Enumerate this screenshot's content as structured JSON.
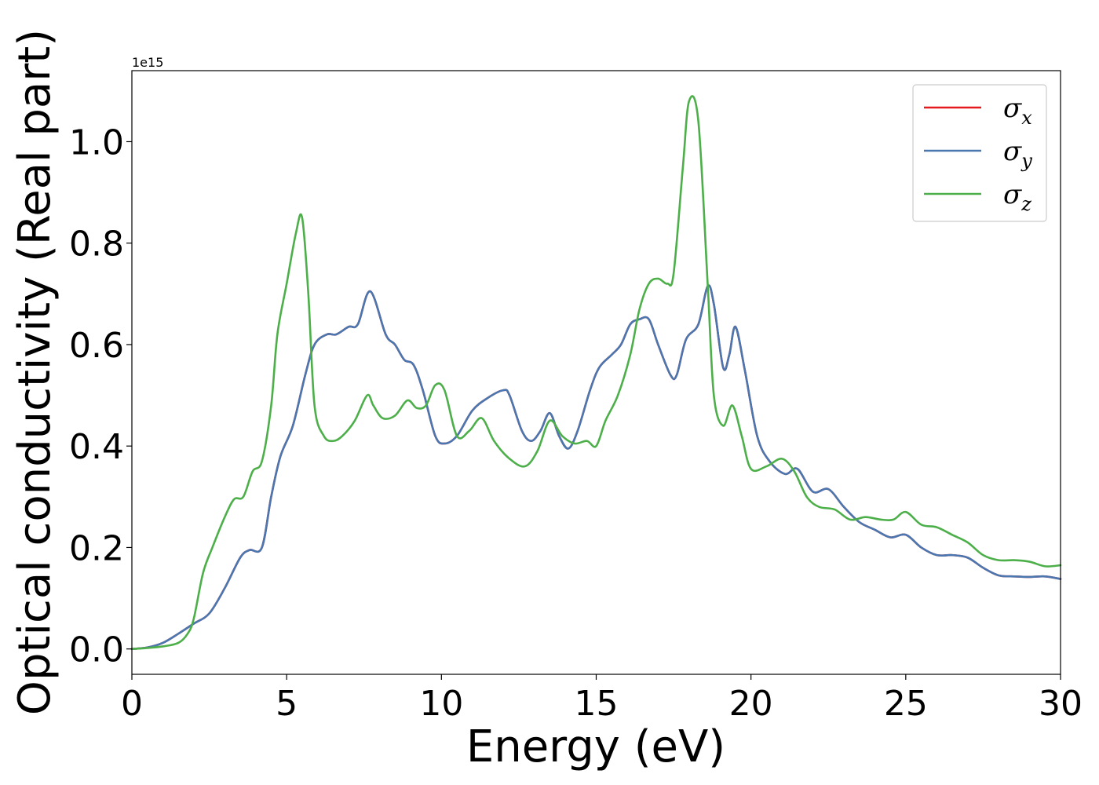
{
  "chart_data": {
    "type": "line",
    "title": "",
    "xlabel": "Energy (eV)",
    "ylabel": "Optical conductivity (Real part)",
    "y_offset_label": "1e15",
    "xlim": [
      0,
      30
    ],
    "ylim": [
      -0.05,
      1.14
    ],
    "xticks": [
      0,
      5,
      10,
      15,
      20,
      25,
      30
    ],
    "xtick_labels": [
      "0",
      "5",
      "10",
      "15",
      "20",
      "25",
      "30"
    ],
    "yticks": [
      0.0,
      0.2,
      0.4,
      0.6,
      0.8,
      1.0
    ],
    "ytick_labels": [
      "0.0",
      "0.2",
      "0.4",
      "0.6",
      "0.8",
      "1.0"
    ],
    "grid": false,
    "legend_position": "top-right",
    "series": [
      {
        "name": "σx",
        "symbol": "σ",
        "subscript": "x",
        "color": "#e41a1c",
        "x": [
          0,
          0.5,
          1,
          1.5,
          2,
          2.5,
          3,
          3.5,
          3.8,
          4.2,
          4.5,
          4.8,
          5.2,
          5.6,
          5.9,
          6.3,
          6.6,
          7,
          7.3,
          7.7,
          8.2,
          8.5,
          8.8,
          9.1,
          9.4,
          9.8,
          10.1,
          10.5,
          11,
          11.5,
          12,
          12.2,
          12.6,
          12.9,
          13.2,
          13.5,
          13.8,
          14.1,
          14.4,
          14.8,
          15.1,
          15.5,
          15.8,
          16.1,
          16.4,
          16.7,
          17,
          17.4,
          17.6,
          17.9,
          18.3,
          18.6,
          18.8,
          19.1,
          19.3,
          19.5,
          19.8,
          20.2,
          20.6,
          21.1,
          21.5,
          22,
          22.5,
          23,
          23.5,
          24,
          24.5,
          25,
          25.5,
          26,
          26.5,
          27,
          27.5,
          28,
          28.5,
          29,
          29.5,
          30
        ],
        "values": [
          0,
          0.003,
          0.012,
          0.03,
          0.05,
          0.07,
          0.12,
          0.18,
          0.195,
          0.2,
          0.3,
          0.38,
          0.44,
          0.54,
          0.6,
          0.62,
          0.62,
          0.635,
          0.64,
          0.705,
          0.62,
          0.6,
          0.57,
          0.56,
          0.51,
          0.42,
          0.405,
          0.42,
          0.47,
          0.495,
          0.51,
          0.5,
          0.43,
          0.41,
          0.43,
          0.465,
          0.42,
          0.395,
          0.43,
          0.51,
          0.555,
          0.58,
          0.6,
          0.64,
          0.65,
          0.65,
          0.6,
          0.54,
          0.54,
          0.61,
          0.64,
          0.715,
          0.68,
          0.555,
          0.58,
          0.635,
          0.55,
          0.42,
          0.37,
          0.345,
          0.355,
          0.31,
          0.315,
          0.28,
          0.25,
          0.235,
          0.22,
          0.225,
          0.2,
          0.185,
          0.185,
          0.18,
          0.16,
          0.145,
          0.143,
          0.142,
          0.143,
          0.138
        ]
      },
      {
        "name": "σy",
        "symbol": "σ",
        "subscript": "y",
        "color": "#4a77b0",
        "x": [
          0,
          0.5,
          1,
          1.5,
          2,
          2.5,
          3,
          3.5,
          3.8,
          4.2,
          4.5,
          4.8,
          5.2,
          5.6,
          5.9,
          6.3,
          6.6,
          7,
          7.3,
          7.7,
          8.2,
          8.5,
          8.8,
          9.1,
          9.4,
          9.8,
          10.1,
          10.5,
          11,
          11.5,
          12,
          12.2,
          12.6,
          12.9,
          13.2,
          13.5,
          13.8,
          14.1,
          14.4,
          14.8,
          15.1,
          15.5,
          15.8,
          16.1,
          16.4,
          16.7,
          17,
          17.4,
          17.6,
          17.9,
          18.3,
          18.6,
          18.8,
          19.1,
          19.3,
          19.5,
          19.8,
          20.2,
          20.6,
          21.1,
          21.5,
          22,
          22.5,
          23,
          23.5,
          24,
          24.5,
          25,
          25.5,
          26,
          26.5,
          27,
          27.5,
          28,
          28.5,
          29,
          29.5,
          30
        ],
        "values": [
          0,
          0.003,
          0.012,
          0.03,
          0.05,
          0.07,
          0.12,
          0.18,
          0.195,
          0.2,
          0.3,
          0.38,
          0.44,
          0.54,
          0.6,
          0.62,
          0.62,
          0.635,
          0.64,
          0.705,
          0.62,
          0.6,
          0.57,
          0.56,
          0.51,
          0.42,
          0.405,
          0.42,
          0.47,
          0.495,
          0.51,
          0.5,
          0.43,
          0.41,
          0.43,
          0.465,
          0.42,
          0.395,
          0.43,
          0.51,
          0.555,
          0.58,
          0.6,
          0.64,
          0.65,
          0.65,
          0.6,
          0.54,
          0.54,
          0.61,
          0.64,
          0.715,
          0.68,
          0.555,
          0.58,
          0.635,
          0.55,
          0.42,
          0.37,
          0.345,
          0.355,
          0.31,
          0.315,
          0.28,
          0.25,
          0.235,
          0.22,
          0.225,
          0.2,
          0.185,
          0.185,
          0.18,
          0.16,
          0.145,
          0.143,
          0.142,
          0.143,
          0.138
        ]
      },
      {
        "name": "σz",
        "symbol": "σ",
        "subscript": "z",
        "color": "#4daf4a",
        "x": [
          0,
          0.5,
          1,
          1.5,
          1.8,
          2,
          2.3,
          2.6,
          3,
          3.3,
          3.6,
          3.9,
          4.2,
          4.5,
          4.7,
          5,
          5.3,
          5.5,
          5.7,
          5.9,
          6.2,
          6.5,
          6.8,
          7.2,
          7.6,
          7.8,
          8.1,
          8.5,
          8.9,
          9.2,
          9.5,
          9.8,
          10.1,
          10.5,
          10.9,
          11.3,
          11.7,
          12.2,
          12.7,
          13.1,
          13.5,
          13.9,
          14.3,
          14.7,
          15,
          15.3,
          15.7,
          16.1,
          16.4,
          16.7,
          17,
          17.3,
          17.5,
          17.8,
          18,
          18.3,
          18.6,
          18.8,
          19.1,
          19.4,
          19.7,
          20,
          20.5,
          21,
          21.4,
          21.8,
          22.2,
          22.7,
          23.2,
          23.7,
          24.2,
          24.6,
          25,
          25.5,
          26,
          26.5,
          27,
          27.5,
          28,
          28.5,
          29,
          29.5,
          30
        ],
        "values": [
          0,
          0.002,
          0.005,
          0.012,
          0.03,
          0.06,
          0.15,
          0.2,
          0.26,
          0.295,
          0.3,
          0.35,
          0.37,
          0.48,
          0.62,
          0.72,
          0.82,
          0.85,
          0.7,
          0.48,
          0.42,
          0.41,
          0.42,
          0.45,
          0.5,
          0.48,
          0.455,
          0.46,
          0.49,
          0.475,
          0.48,
          0.52,
          0.51,
          0.42,
          0.43,
          0.455,
          0.41,
          0.375,
          0.36,
          0.39,
          0.45,
          0.42,
          0.405,
          0.41,
          0.4,
          0.45,
          0.5,
          0.58,
          0.67,
          0.72,
          0.73,
          0.72,
          0.74,
          0.95,
          1.08,
          1.04,
          0.72,
          0.5,
          0.44,
          0.48,
          0.42,
          0.355,
          0.36,
          0.375,
          0.35,
          0.3,
          0.28,
          0.275,
          0.255,
          0.26,
          0.255,
          0.255,
          0.27,
          0.245,
          0.24,
          0.225,
          0.21,
          0.185,
          0.175,
          0.175,
          0.172,
          0.163,
          0.165
        ]
      }
    ]
  }
}
